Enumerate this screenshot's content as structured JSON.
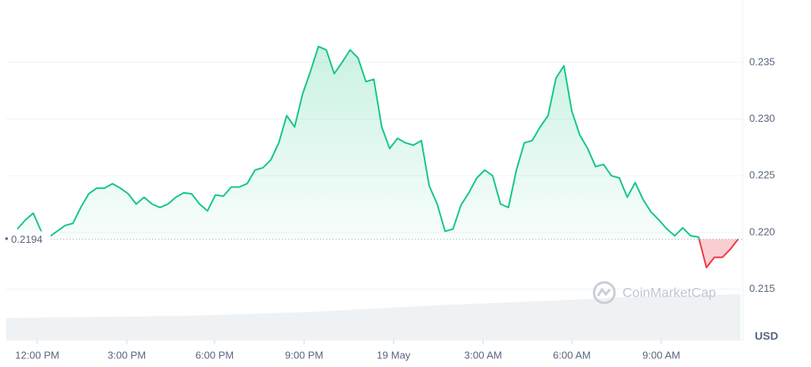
{
  "chart_data": {
    "type": "line",
    "currency": "USD",
    "watermark": "CoinMarketCap",
    "baseline": 0.2194,
    "series": [
      {
        "values": [
          0.2203,
          0.2211,
          0.2217,
          0.2201,
          0.2196,
          0.2201,
          0.2206,
          0.2208,
          0.2222,
          0.2234,
          0.2239,
          0.2239,
          0.2243,
          0.2239,
          0.2234,
          0.2225,
          0.2231,
          0.2225,
          0.2222,
          0.2225,
          0.2231,
          0.2235,
          0.2234,
          0.2225,
          0.2219,
          0.2233,
          0.2232,
          0.224,
          0.224,
          0.2243,
          0.2255,
          0.2257,
          0.2264,
          0.2279,
          0.2303,
          0.2293,
          0.2322,
          0.2342,
          0.2364,
          0.2361,
          0.234,
          0.235,
          0.2361,
          0.2354,
          0.2333,
          0.2335,
          0.2293,
          0.2274,
          0.2283,
          0.2279,
          0.2277,
          0.2281,
          0.2241,
          0.2225,
          0.2201,
          0.2203,
          0.2224,
          0.2235,
          0.2248,
          0.2255,
          0.225,
          0.2225,
          0.2222,
          0.2255,
          0.2279,
          0.2281,
          0.2293,
          0.2303,
          0.2336,
          0.2347,
          0.2307,
          0.2286,
          0.2274,
          0.2258,
          0.226,
          0.225,
          0.2248,
          0.2231,
          0.2244,
          0.2229,
          0.2218,
          0.2211,
          0.2203,
          0.2197,
          0.2204,
          0.2197,
          0.2196,
          0.2169,
          0.2178,
          0.2178,
          0.2185,
          0.2194
        ],
        "color_up": "#16c784",
        "color_down": "#ea3943"
      }
    ],
    "xlim": [
      -1.4,
      91.6
    ],
    "xticks": [
      {
        "value": 2.5,
        "label": "12:00 PM"
      },
      {
        "value": 13.8,
        "label": "3:00 PM"
      },
      {
        "value": 24.9,
        "label": "6:00 PM"
      },
      {
        "value": 36.2,
        "label": "9:00 PM"
      },
      {
        "value": 47.5,
        "label": "19 May"
      },
      {
        "value": 58.8,
        "label": "3:00 AM"
      },
      {
        "value": 70,
        "label": "6:00 AM"
      },
      {
        "value": 81.3,
        "label": "9:00 AM"
      }
    ],
    "ylim": [
      0.2105,
      0.2405
    ],
    "yticks": [
      0.215,
      {
        "value": 0.22,
        "label": "0.220"
      },
      0.225,
      {
        "value": 0.23,
        "label": "0.230"
      },
      0.235
    ],
    "grid": true
  }
}
